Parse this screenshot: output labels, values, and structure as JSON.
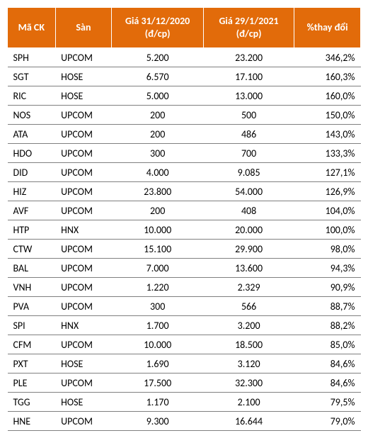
{
  "table": {
    "header_bg": "#e26b0a",
    "header_color": "#ffffff",
    "border_color": "#808080",
    "font_size": 14,
    "columns": [
      {
        "key": "ck",
        "label": "Mã CK",
        "align": "left"
      },
      {
        "key": "san",
        "label": "Sàn",
        "align": "left"
      },
      {
        "key": "p1",
        "label": "Giá 31/12/2020 (đ/cp)",
        "align": "center"
      },
      {
        "key": "p2",
        "label": "Giá 29/1/2021 (đ/cp)",
        "align": "center"
      },
      {
        "key": "pct",
        "label": "%thay đổi",
        "align": "right"
      }
    ],
    "rows": [
      {
        "ck": "SPH",
        "san": "UPCOM",
        "p1": "5.200",
        "p2": "23.200",
        "pct": "346,2%"
      },
      {
        "ck": "SGT",
        "san": "HOSE",
        "p1": "6.570",
        "p2": "17.100",
        "pct": "160,3%"
      },
      {
        "ck": "RIC",
        "san": "HOSE",
        "p1": "5.000",
        "p2": "13.000",
        "pct": "160,0%"
      },
      {
        "ck": "NOS",
        "san": "UPCOM",
        "p1": "200",
        "p2": "500",
        "pct": "150,0%"
      },
      {
        "ck": "ATA",
        "san": "UPCOM",
        "p1": "200",
        "p2": "486",
        "pct": "143,0%"
      },
      {
        "ck": "HDO",
        "san": "UPCOM",
        "p1": "300",
        "p2": "700",
        "pct": "133,3%"
      },
      {
        "ck": "DID",
        "san": "UPCOM",
        "p1": "4.000",
        "p2": "9.085",
        "pct": "127,1%"
      },
      {
        "ck": "HIZ",
        "san": "UPCOM",
        "p1": "23.800",
        "p2": "54.000",
        "pct": "126,9%"
      },
      {
        "ck": "AVF",
        "san": "UPCOM",
        "p1": "200",
        "p2": "408",
        "pct": "104,0%"
      },
      {
        "ck": "HTP",
        "san": "HNX",
        "p1": "10.000",
        "p2": "20.000",
        "pct": "100,0%"
      },
      {
        "ck": "CTW",
        "san": "UPCOM",
        "p1": "15.100",
        "p2": "29.900",
        "pct": "98,0%"
      },
      {
        "ck": "BAL",
        "san": "UPCOM",
        "p1": "7.000",
        "p2": "13.600",
        "pct": "94,3%"
      },
      {
        "ck": "VNH",
        "san": "UPCOM",
        "p1": "1.220",
        "p2": "2.329",
        "pct": "90,9%"
      },
      {
        "ck": "PVA",
        "san": "UPCOM",
        "p1": "300",
        "p2": "566",
        "pct": "88,7%"
      },
      {
        "ck": "SPI",
        "san": "HNX",
        "p1": "1.700",
        "p2": "3.200",
        "pct": "88,2%"
      },
      {
        "ck": "CFM",
        "san": "UPCOM",
        "p1": "10.000",
        "p2": "18.500",
        "pct": "85,0%"
      },
      {
        "ck": "PXT",
        "san": "HOSE",
        "p1": "1.690",
        "p2": "3.120",
        "pct": "84,6%"
      },
      {
        "ck": "PLE",
        "san": "UPCOM",
        "p1": "17.500",
        "p2": "32.300",
        "pct": "84,6%"
      },
      {
        "ck": "TGG",
        "san": "HOSE",
        "p1": "1.170",
        "p2": "2.100",
        "pct": "79,5%"
      },
      {
        "ck": "HNE",
        "san": "UPCOM",
        "p1": "9.300",
        "p2": "16.644",
        "pct": "79,0%"
      }
    ]
  }
}
